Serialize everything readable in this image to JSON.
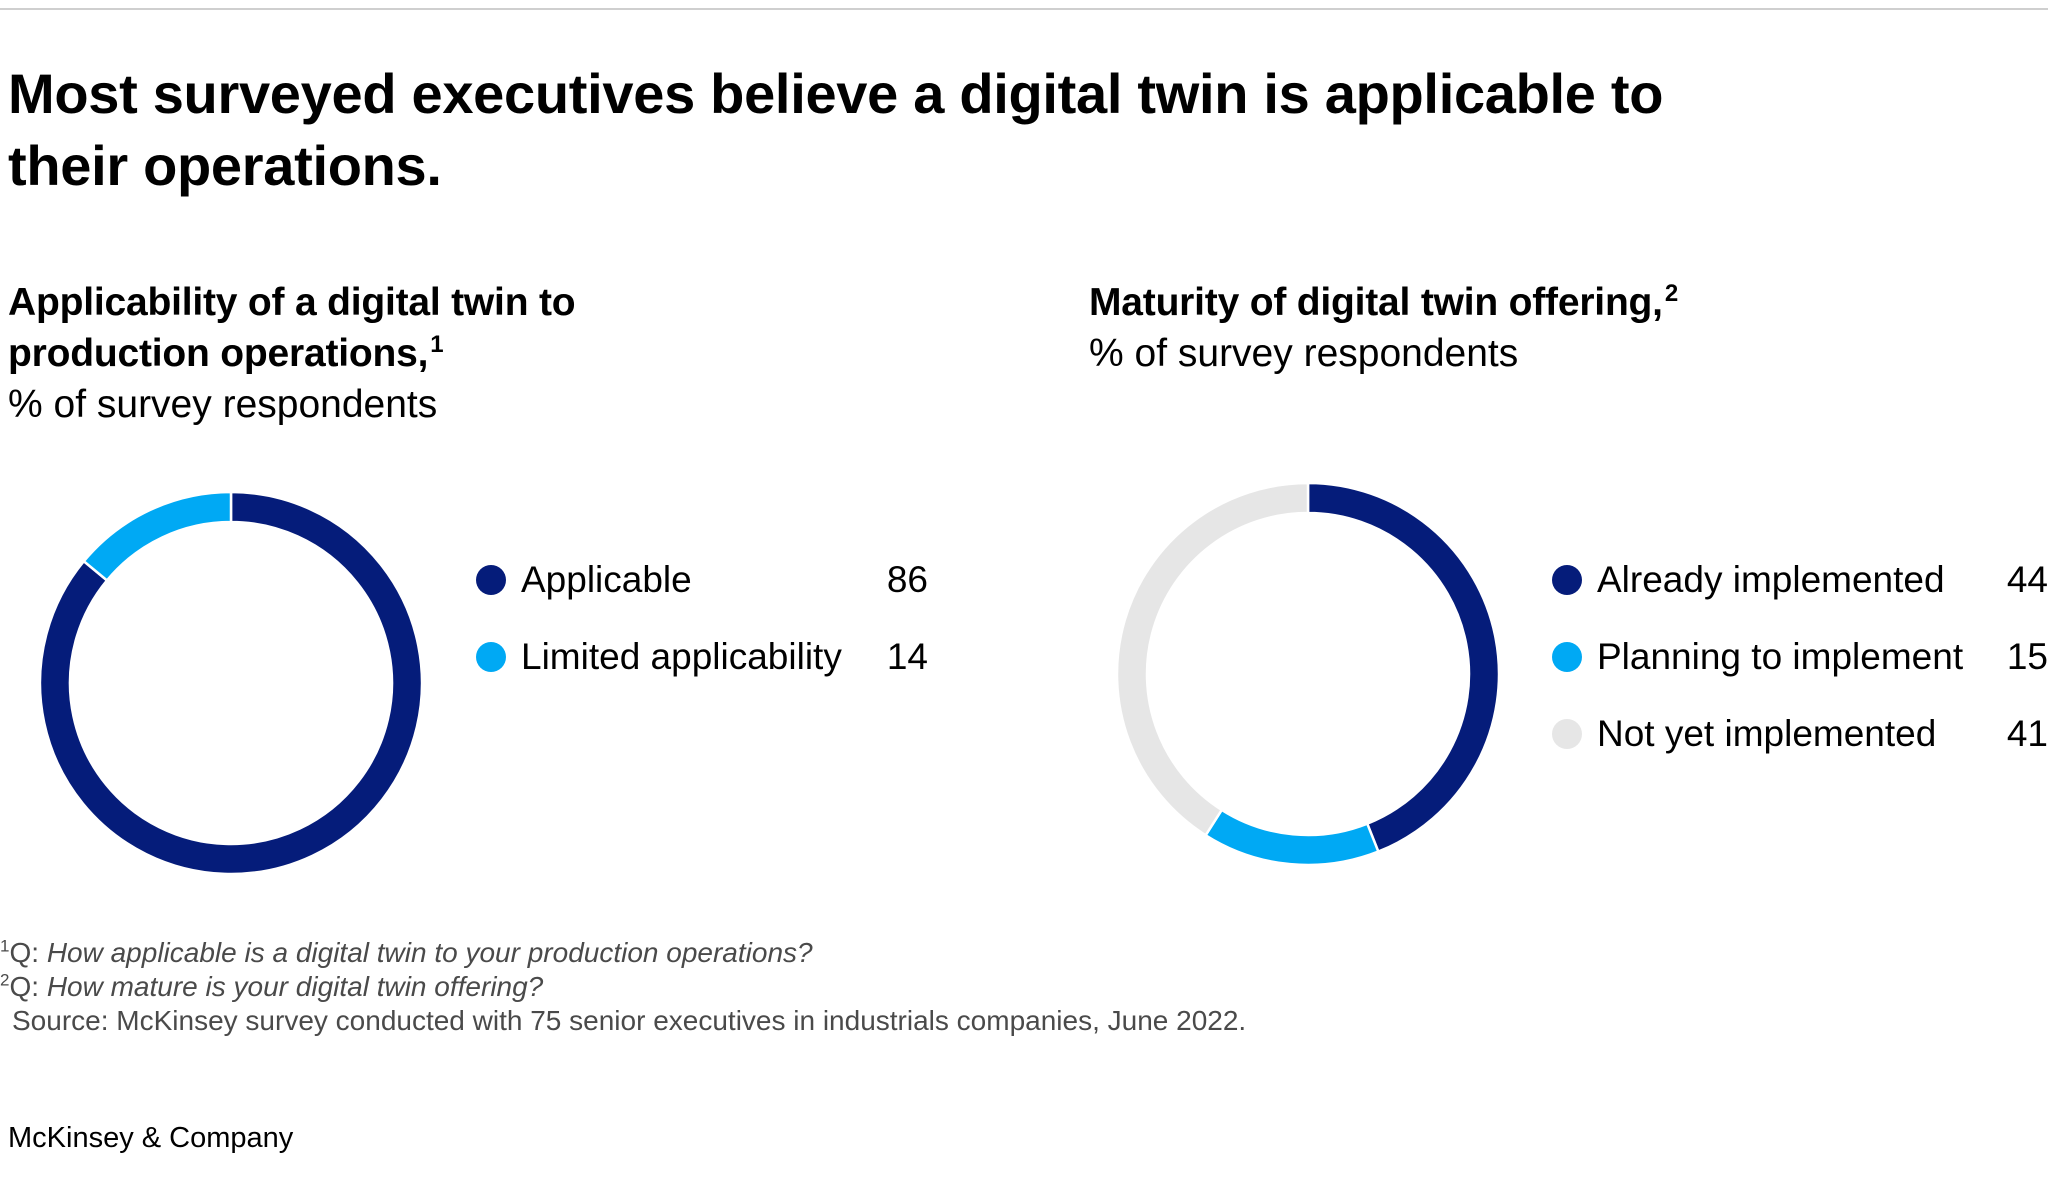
{
  "title": "Most surveyed executives believe a digital twin is applicable to their operations.",
  "colors": {
    "dark_blue": "#051c7a",
    "light_blue": "#00a9f4",
    "light_grey": "#e6e6e6"
  },
  "chart_data": [
    {
      "type": "pie",
      "style": "donut",
      "title": "Applicability of a digital twin to production operations,",
      "title_footnote": "1",
      "subtitle": "% of survey respondents",
      "categories": [
        "Applicable",
        "Limited applicability"
      ],
      "values": [
        86,
        14
      ],
      "colors": [
        "#051c7a",
        "#00a9f4"
      ],
      "legend_placement": "right",
      "start": "top, clockwise"
    },
    {
      "type": "pie",
      "style": "donut",
      "title": "Maturity of digital twin offering,",
      "title_footnote": "2",
      "subtitle": "% of survey respondents",
      "categories": [
        "Already implemented",
        "Planning to implement",
        "Not yet implemented"
      ],
      "values": [
        44,
        15,
        41
      ],
      "colors": [
        "#051c7a",
        "#00a9f4",
        "#e6e6e6"
      ],
      "legend_placement": "right",
      "start": "top, clockwise"
    }
  ],
  "footnotes": [
    {
      "marker": "1",
      "prefix": "Q: ",
      "text": "How applicable is a digital twin to your production operations?"
    },
    {
      "marker": "2",
      "prefix": "Q: ",
      "text": "How mature is your digital twin offering?"
    }
  ],
  "source": "Source: McKinsey survey conducted with 75 senior executives in industrials companies, June 2022.",
  "brand": "McKinsey & Company"
}
